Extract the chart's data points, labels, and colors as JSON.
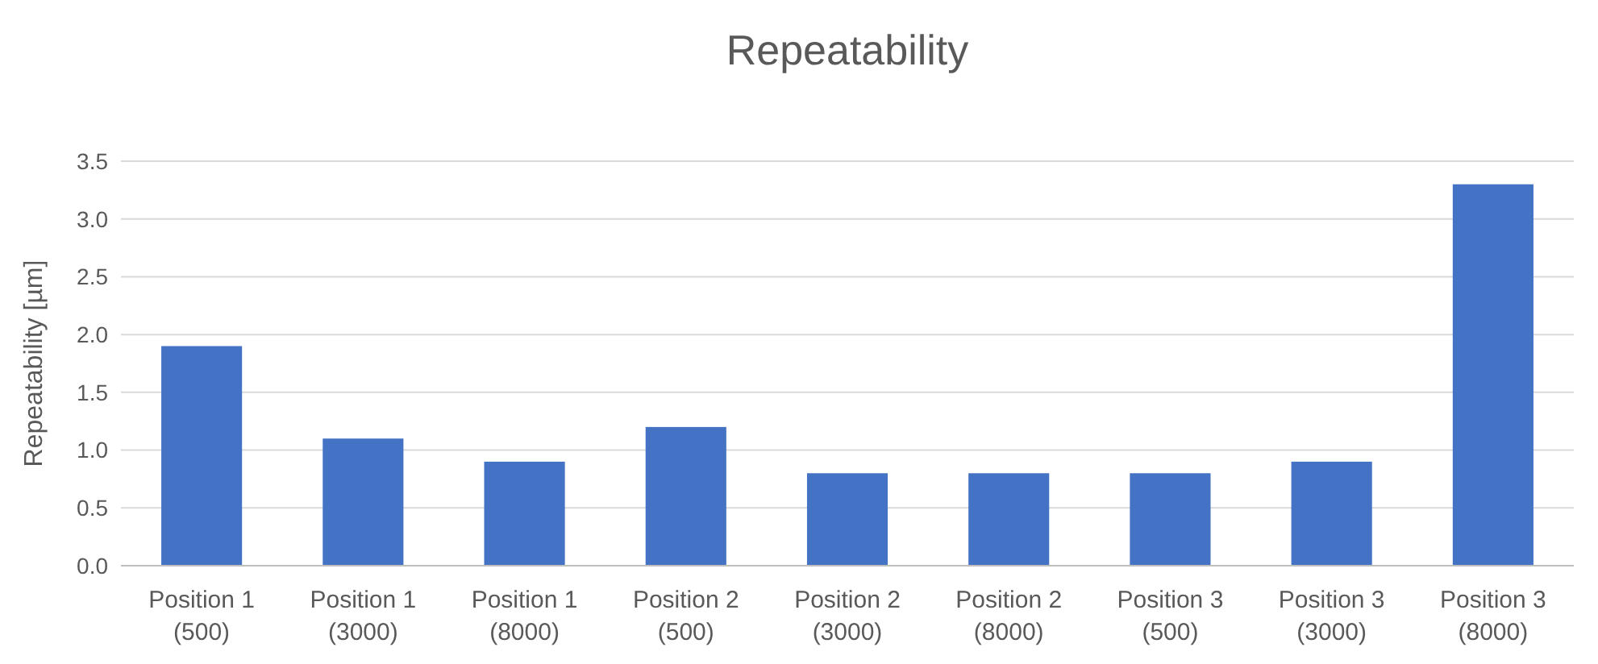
{
  "chart_data": {
    "type": "bar",
    "title": "Repeatability",
    "ylabel": "Repeatability [µm]",
    "categories": [
      "Position 1 (500)",
      "Position 1 (3000)",
      "Position 1 (8000)",
      "Position 2 (500)",
      "Position 2 (3000)",
      "Position 2 (8000)",
      "Position 3 (500)",
      "Position 3 (3000)",
      "Position 3 (8000)"
    ],
    "values": [
      1.9,
      1.1,
      0.9,
      1.2,
      0.8,
      0.8,
      0.8,
      0.9,
      3.3
    ],
    "color": "#4472c4",
    "ylim": [
      0,
      3.5
    ],
    "yticks": [
      {
        "value": 0,
        "label": "0.0"
      },
      {
        "value": 0.5,
        "label": "0.5"
      },
      {
        "value": 1,
        "label": "1.0"
      },
      {
        "value": 1.5,
        "label": "1.5"
      },
      {
        "value": 2,
        "label": "2.0"
      },
      {
        "value": 2.5,
        "label": "2.5"
      },
      {
        "value": 3,
        "label": "3.0"
      },
      {
        "value": 3.5,
        "label": "3.5"
      }
    ],
    "grid": true
  }
}
